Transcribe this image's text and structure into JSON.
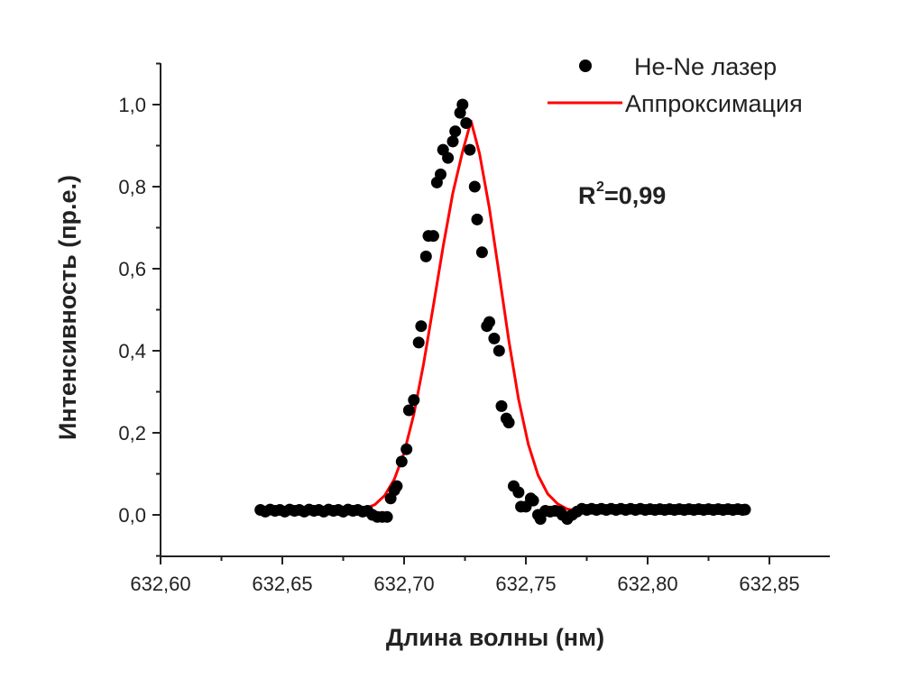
{
  "chart_data": {
    "type": "scatter",
    "xlabel": "Длина волны (нм)",
    "ylabel": "Интенсивность (пр.е.)",
    "xlim": [
      632.6,
      632.87
    ],
    "ylim": [
      -0.1,
      1.1
    ],
    "x_ticks": [
      632.6,
      632.65,
      632.7,
      632.75,
      632.8,
      632.85
    ],
    "x_tick_labels": [
      "632,60",
      "632,65",
      "632,70",
      "632,75",
      "632,80",
      "632,85"
    ],
    "y_ticks": [
      0.0,
      0.2,
      0.4,
      0.6,
      0.8,
      1.0
    ],
    "y_tick_labels": [
      "0,0",
      "0,2",
      "0,4",
      "0,6",
      "0,8",
      "1,0"
    ],
    "grid": false,
    "legend_position": "top-right",
    "annotation": {
      "base": "R",
      "sup": "2",
      "rest": "=0,99"
    },
    "series": [
      {
        "name": "He-Ne лазер",
        "type": "scatter",
        "color": "#000000",
        "points": [
          [
            632.641,
            0.012
          ],
          [
            632.643,
            0.008
          ],
          [
            632.645,
            0.013
          ],
          [
            632.647,
            0.01
          ],
          [
            632.649,
            0.012
          ],
          [
            632.651,
            0.008
          ],
          [
            632.653,
            0.013
          ],
          [
            632.655,
            0.01
          ],
          [
            632.657,
            0.012
          ],
          [
            632.659,
            0.008
          ],
          [
            632.661,
            0.013
          ],
          [
            632.663,
            0.01
          ],
          [
            632.665,
            0.012
          ],
          [
            632.667,
            0.008
          ],
          [
            632.669,
            0.013
          ],
          [
            632.671,
            0.01
          ],
          [
            632.673,
            0.012
          ],
          [
            632.675,
            0.008
          ],
          [
            632.677,
            0.013
          ],
          [
            632.679,
            0.01
          ],
          [
            632.681,
            0.012
          ],
          [
            632.683,
            0.008
          ],
          [
            632.685,
            0.01
          ],
          [
            632.687,
            0.0
          ],
          [
            632.689,
            -0.005
          ],
          [
            632.691,
            -0.005
          ],
          [
            632.693,
            -0.005
          ],
          [
            632.6945,
            0.04
          ],
          [
            632.696,
            0.06
          ],
          [
            632.697,
            0.07
          ],
          [
            632.699,
            0.13
          ],
          [
            632.701,
            0.16
          ],
          [
            632.702,
            0.255
          ],
          [
            632.704,
            0.28
          ],
          [
            632.706,
            0.42
          ],
          [
            632.707,
            0.46
          ],
          [
            632.709,
            0.63
          ],
          [
            632.71,
            0.68
          ],
          [
            632.712,
            0.68
          ],
          [
            632.7135,
            0.81
          ],
          [
            632.715,
            0.83
          ],
          [
            632.716,
            0.89
          ],
          [
            632.718,
            0.87
          ],
          [
            632.72,
            0.91
          ],
          [
            632.721,
            0.935
          ],
          [
            632.723,
            0.98
          ],
          [
            632.724,
            1.0
          ],
          [
            632.7255,
            0.955
          ],
          [
            632.727,
            0.89
          ],
          [
            632.729,
            0.8
          ],
          [
            632.73,
            0.72
          ],
          [
            632.732,
            0.64
          ],
          [
            632.734,
            0.46
          ],
          [
            632.735,
            0.47
          ],
          [
            632.737,
            0.43
          ],
          [
            632.739,
            0.4
          ],
          [
            632.74,
            0.265
          ],
          [
            632.742,
            0.235
          ],
          [
            632.743,
            0.225
          ],
          [
            632.745,
            0.07
          ],
          [
            632.747,
            0.055
          ],
          [
            632.748,
            0.02
          ],
          [
            632.75,
            0.02
          ],
          [
            632.752,
            0.04
          ],
          [
            632.753,
            0.035
          ],
          [
            632.755,
            0.0
          ],
          [
            632.756,
            -0.01
          ],
          [
            632.758,
            0.01
          ],
          [
            632.76,
            0.008
          ],
          [
            632.762,
            0.01
          ],
          [
            632.764,
            0.008
          ],
          [
            632.765,
            0.0
          ],
          [
            632.767,
            -0.01
          ],
          [
            632.769,
            0.0
          ],
          [
            632.771,
            0.008
          ],
          [
            632.773,
            0.015
          ],
          [
            632.775,
            0.012
          ],
          [
            632.777,
            0.015
          ],
          [
            632.779,
            0.012
          ],
          [
            632.781,
            0.015
          ],
          [
            632.783,
            0.012
          ],
          [
            632.785,
            0.015
          ],
          [
            632.787,
            0.012
          ],
          [
            632.789,
            0.015
          ],
          [
            632.791,
            0.012
          ],
          [
            632.793,
            0.015
          ],
          [
            632.795,
            0.012
          ],
          [
            632.797,
            0.015
          ],
          [
            632.799,
            0.012
          ],
          [
            632.801,
            0.014
          ],
          [
            632.803,
            0.012
          ],
          [
            632.805,
            0.014
          ],
          [
            632.807,
            0.012
          ],
          [
            632.809,
            0.014
          ],
          [
            632.811,
            0.012
          ],
          [
            632.813,
            0.014
          ],
          [
            632.815,
            0.012
          ],
          [
            632.817,
            0.014
          ],
          [
            632.819,
            0.012
          ],
          [
            632.821,
            0.014
          ],
          [
            632.823,
            0.012
          ],
          [
            632.825,
            0.014
          ],
          [
            632.827,
            0.012
          ],
          [
            632.829,
            0.014
          ],
          [
            632.831,
            0.012
          ],
          [
            632.833,
            0.014
          ],
          [
            632.835,
            0.012
          ],
          [
            632.837,
            0.014
          ],
          [
            632.839,
            0.012
          ],
          [
            632.84,
            0.013
          ]
        ]
      },
      {
        "name": "Аппроксимация",
        "type": "line",
        "color": "#ff0000",
        "x": [
          632.641,
          632.65,
          632.66,
          632.67,
          632.678,
          632.684,
          632.688,
          632.692,
          632.696,
          632.7,
          632.704,
          632.708,
          632.712,
          632.716,
          632.72,
          632.724,
          632.7275,
          632.731,
          632.735,
          632.739,
          632.743,
          632.747,
          632.751,
          632.755,
          632.759,
          632.763,
          632.767,
          632.772,
          632.78,
          632.79,
          632.8,
          632.81,
          632.82,
          632.83,
          632.84
        ],
        "y": [
          0.008,
          0.008,
          0.008,
          0.009,
          0.011,
          0.015,
          0.025,
          0.047,
          0.087,
          0.151,
          0.245,
          0.368,
          0.509,
          0.653,
          0.784,
          0.885,
          0.96,
          0.88,
          0.748,
          0.588,
          0.425,
          0.282,
          0.172,
          0.097,
          0.051,
          0.027,
          0.014,
          0.009,
          0.007,
          0.008,
          0.009,
          0.01,
          0.011,
          0.012,
          0.013
        ]
      }
    ]
  }
}
